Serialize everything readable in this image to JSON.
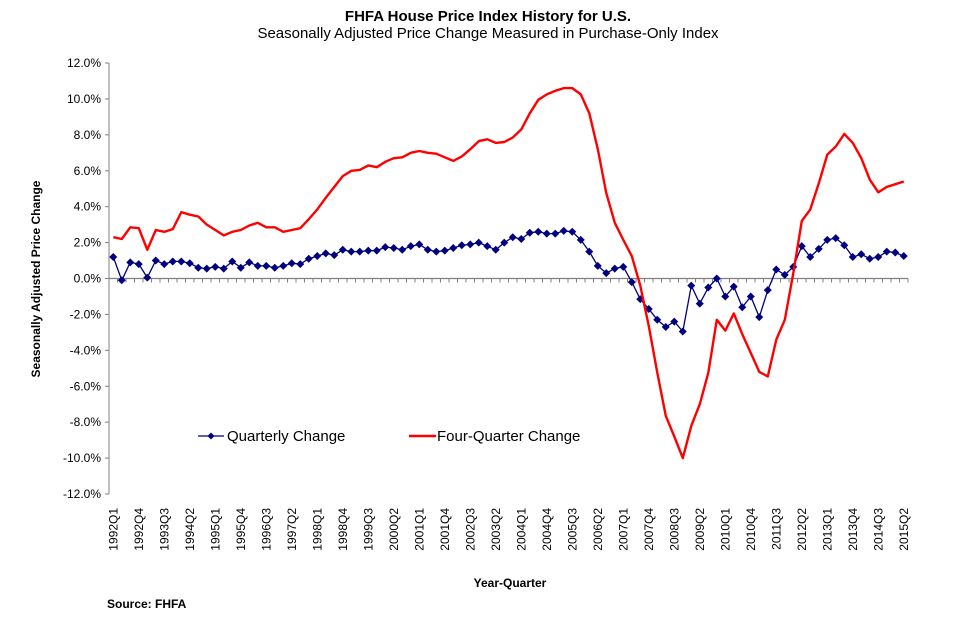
{
  "chart_data": {
    "type": "line",
    "title": "FHFA House Price Index History for U.S.",
    "subtitle": "Seasonally Adjusted Price Change Measured in Purchase-Only Index",
    "xlabel": "Year-Quarter",
    "ylabel": "Seasonally Adjusted Price Change",
    "ylim": [
      -12,
      12
    ],
    "ytick_step": 2,
    "ytick_labels": [
      "12.0%",
      "10.0%",
      "8.0%",
      "6.0%",
      "4.0%",
      "2.0%",
      "0.0%",
      "-2.0%",
      "-4.0%",
      "-6.0%",
      "-8.0%",
      "-10.0%",
      "-12.0%"
    ],
    "x_start": "1992Q1",
    "x_end": "2015Q2",
    "x_label_every": 3,
    "xtick_labels": [
      "1992Q1",
      "1992Q4",
      "1993Q3",
      "1994Q2",
      "1995Q1",
      "1995Q4",
      "1996Q3",
      "1997Q2",
      "1998Q1",
      "1998Q4",
      "1999Q3",
      "2000Q2",
      "2001Q1",
      "2001Q4",
      "2002Q3",
      "2003Q2",
      "2004Q1",
      "2004Q4",
      "2005Q3",
      "2006Q2",
      "2007Q1",
      "2007Q4",
      "2008Q3",
      "2009Q2",
      "2010Q1",
      "2010Q4",
      "2011Q3",
      "2012Q2",
      "2013Q1",
      "2013Q4",
      "2014Q3",
      "2015Q2"
    ],
    "legend_placement": "lower-left-center",
    "grid": false,
    "series": [
      {
        "name": "Quarterly Change",
        "color": "#000080",
        "marker": "diamond",
        "values": [
          1.2,
          -0.1,
          0.9,
          0.8,
          0.05,
          1.0,
          0.8,
          0.95,
          0.95,
          0.85,
          0.6,
          0.55,
          0.65,
          0.55,
          0.95,
          0.6,
          0.9,
          0.7,
          0.7,
          0.6,
          0.7,
          0.85,
          0.8,
          1.1,
          1.25,
          1.4,
          1.3,
          1.6,
          1.5,
          1.5,
          1.55,
          1.55,
          1.75,
          1.7,
          1.6,
          1.8,
          1.9,
          1.6,
          1.5,
          1.55,
          1.7,
          1.85,
          1.9,
          2.0,
          1.8,
          1.6,
          2.0,
          2.3,
          2.2,
          2.55,
          2.6,
          2.5,
          2.5,
          2.65,
          2.6,
          2.15,
          1.5,
          0.7,
          0.3,
          0.55,
          0.65,
          -0.2,
          -1.15,
          -1.7,
          -2.3,
          -2.7,
          -2.4,
          -2.95,
          -0.4,
          -1.4,
          -0.5,
          0.0,
          -1.0,
          -0.45,
          -1.6,
          -1.0,
          -2.15,
          -0.65,
          0.5,
          0.2,
          0.65,
          1.8,
          1.2,
          1.65,
          2.15,
          2.25,
          1.85,
          1.2,
          1.35,
          1.1,
          1.2,
          1.5,
          1.45,
          1.25
        ]
      },
      {
        "name": "Four-Quarter Change",
        "color": "#FF0000",
        "marker": "none",
        "values": [
          2.3,
          2.2,
          2.85,
          2.8,
          1.6,
          2.7,
          2.6,
          2.75,
          3.7,
          3.55,
          3.45,
          3.0,
          2.7,
          2.4,
          2.6,
          2.7,
          2.95,
          3.1,
          2.85,
          2.85,
          2.6,
          2.7,
          2.8,
          3.3,
          3.85,
          4.5,
          5.1,
          5.7,
          6.0,
          6.05,
          6.3,
          6.2,
          6.5,
          6.7,
          6.75,
          7.0,
          7.1,
          7.0,
          6.95,
          6.75,
          6.55,
          6.8,
          7.2,
          7.65,
          7.75,
          7.55,
          7.6,
          7.85,
          8.3,
          9.2,
          9.95,
          10.25,
          10.45,
          10.6,
          10.6,
          10.25,
          9.2,
          7.2,
          4.75,
          3.1,
          2.15,
          1.25,
          -0.4,
          -2.65,
          -5.25,
          -7.65,
          -8.8,
          -10.0,
          -8.2,
          -7.0,
          -5.25,
          -2.3,
          -2.9,
          -1.95,
          -3.1,
          -4.15,
          -5.2,
          -5.45,
          -3.4,
          -2.3,
          0.3,
          3.2,
          3.85,
          5.3,
          6.9,
          7.35,
          8.05,
          7.55,
          6.7,
          5.5,
          4.8,
          5.1,
          5.25,
          5.4
        ]
      }
    ],
    "source": "Source:  FHFA"
  }
}
